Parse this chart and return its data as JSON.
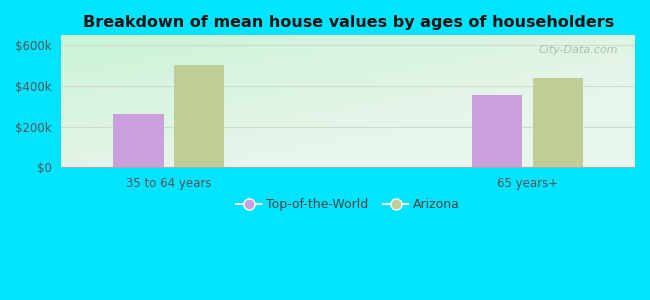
{
  "title": "Breakdown of mean house values by ages of householders",
  "categories": [
    "35 to 64 years",
    "65 years+"
  ],
  "series": {
    "Top-of-the-World": [
      262000,
      357000
    ],
    "Arizona": [
      505000,
      440000
    ]
  },
  "colors": {
    "Top-of-the-World": "#c9a0dc",
    "Arizona": "#bece96"
  },
  "ylim": [
    0,
    650000
  ],
  "yticks": [
    0,
    200000,
    400000,
    600000
  ],
  "ytick_labels": [
    "$0",
    "$200k",
    "$400k",
    "$600k"
  ],
  "background_color": "#00e5ff",
  "bar_width": 0.28,
  "watermark": "City-Data.com"
}
